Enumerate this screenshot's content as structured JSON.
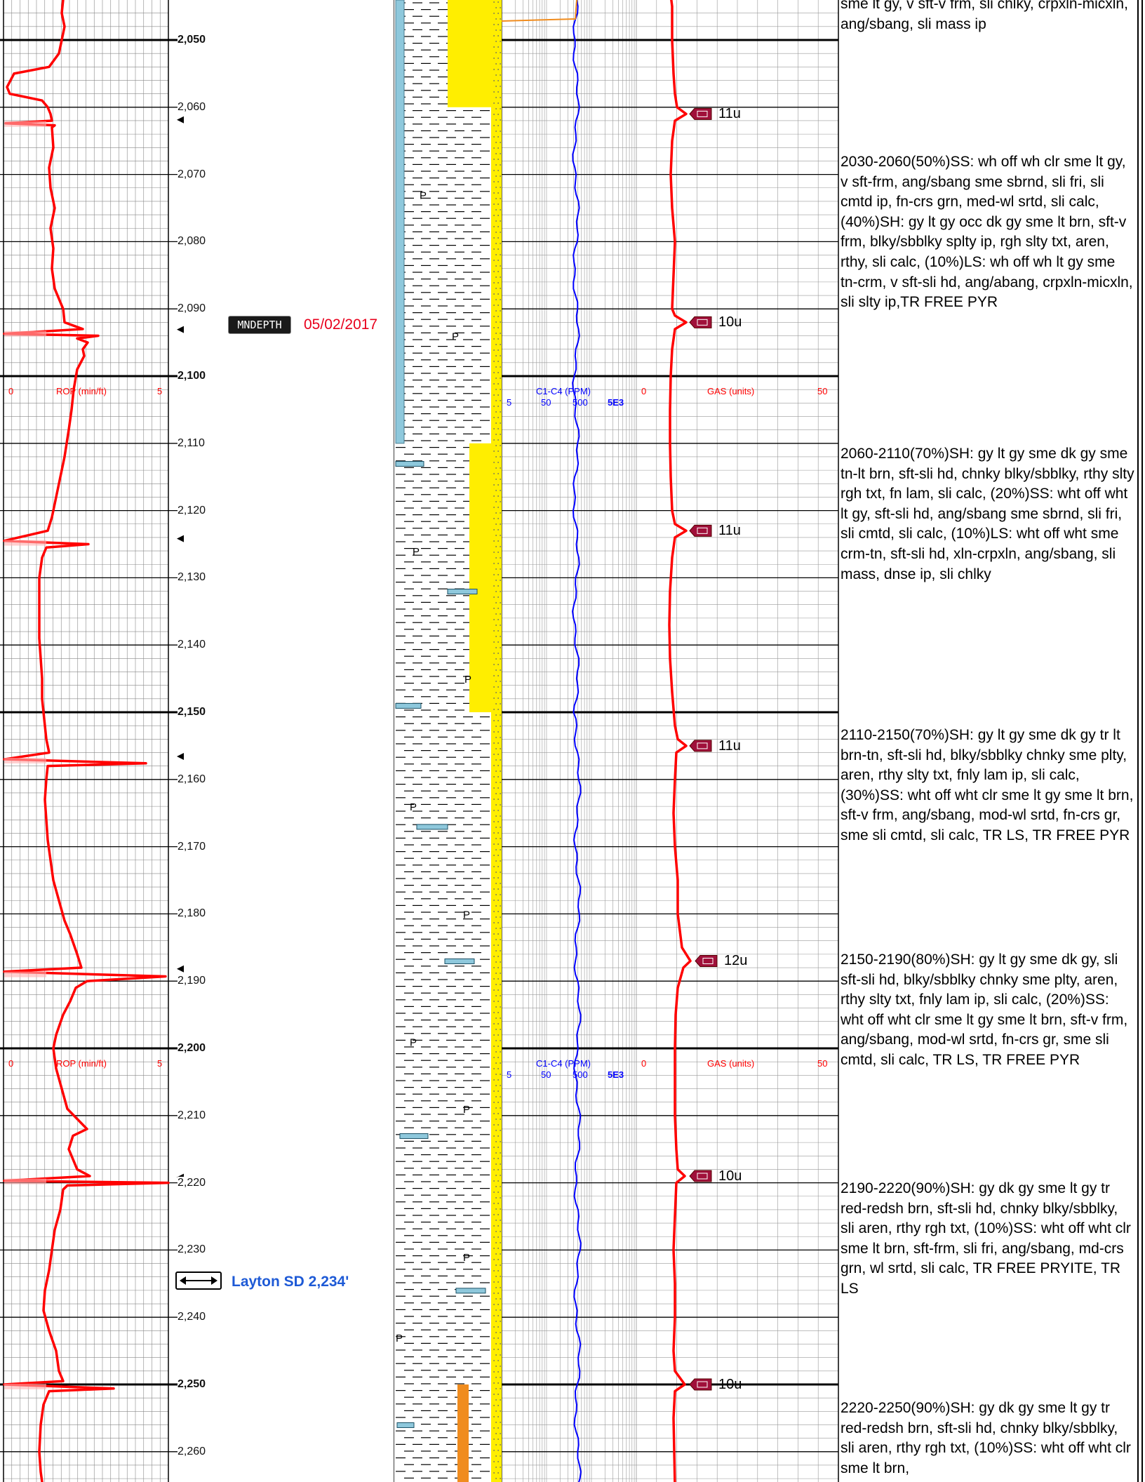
{
  "depth_track": {
    "unit": "ft",
    "depth_labels": [
      "2,050",
      "2,060",
      "2,070",
      "2,080",
      "2,090",
      "2,100",
      "2,110",
      "2,120",
      "2,130",
      "2,140",
      "2,150",
      "2,160",
      "2,170",
      "2,180",
      "2,190",
      "2,200",
      "2,210",
      "2,220",
      "2,230",
      "2,240",
      "2,250",
      "2,260"
    ],
    "bold_depths": [
      "2,050",
      "2,100",
      "2,150",
      "2,200",
      "2,250"
    ]
  },
  "rop_track": {
    "scale_min": "0",
    "scale_label": "ROP (min/ft)",
    "scale_max": "5",
    "header_depths": [
      2100,
      2200
    ],
    "color": "#ff0000"
  },
  "gas_track": {
    "c1c4_label": "C1-C4 (PPM)",
    "c1c4_ticks": [
      "5",
      "50",
      "500",
      "5E3"
    ],
    "gas_min": "0",
    "gas_label": "GAS (units)",
    "gas_max": "50",
    "connection_gas": [
      {
        "depth": 2061,
        "label": "11u"
      },
      {
        "depth": 2092,
        "label": "10u"
      },
      {
        "depth": 2123,
        "label": "11u"
      },
      {
        "depth": 2155,
        "label": "11u"
      },
      {
        "depth": 2187,
        "label": "12u"
      },
      {
        "depth": 2219,
        "label": "10u"
      },
      {
        "depth": 2250,
        "label": "10u"
      }
    ]
  },
  "annotations": {
    "mindepth_badge": "MNDEPTH",
    "mindepth_date": "05/02/2017",
    "formation_top": "Layton SD 2,234'"
  },
  "colors": {
    "rop": "#ff0000",
    "c1c4": "#0000ff",
    "gas": "#ff0000",
    "sand": "#ffee00",
    "limestone": "#8ec8dc",
    "orange": "#f08c1e"
  },
  "descriptions": [
    {
      "depth": 2030,
      "text": "sme lt gy, v sft-v frm, sli chlky, crpxln-micxln, ang/sbang, sli mass ip"
    },
    {
      "depth": 2030,
      "text": "2030-2060(50%)SS: wh off wh clr sme lt gy, v sft-frm, ang/sbang sme sbrnd, sli fri, sli cmtd ip, fn-crs grn, med-wl srtd, sli calc, (40%)SH: gy lt gy occ dk gy sme lt brn, sft-v frm, blky/sbblky splty ip, rgh slty txt, aren, rthy, sli calc, (10%)LS: wh off wh lt gy sme tn-crm, v sft-sli hd, ang/abang, crpxln-micxln, sli slty ip,TR FREE PYR"
    },
    {
      "depth": 2060,
      "text": "2060-2110(70%)SH: gy lt gy sme dk gy sme tn-lt brn, sft-sli hd, chnky blky/sbblky, rthy slty rgh txt, fn lam, sli calc, (20%)SS: wht off wht lt gy, sft-sli hd, ang/sbang sme sbrnd, sli fri, sli cmtd, sli calc, (10%)LS: wht off wht sme crm-tn, sft-sli hd, xln-crpxln, ang/sbang, sli mass, dnse ip, sli chlky"
    },
    {
      "depth": 2110,
      "text": "2110-2150(70%)SH: gy lt gy sme dk gy tr lt brn-tn, sft-sli hd, blky/sbblky chnky sme plty, aren, rthy slty txt, fnly lam ip, sli calc, (30%)SS: wht off wht clr sme lt gy sme lt brn, sft-v frm, ang/sbang, mod-wl srtd, fn-crs gr, sme sli cmtd, sli calc, TR LS, TR FREE PYR"
    },
    {
      "depth": 2150,
      "text": "2150-2190(80%)SH: gy lt gy sme dk gy, sli sft-sli hd, blky/sbblky chnky sme plty, aren, rthy slty txt, fnly lam ip, sli calc, (20%)SS: wht off wht clr sme lt gy sme lt brn, sft-v frm, ang/sbang, mod-wl srtd, fn-crs gr, sme sli cmtd, sli calc, TR LS, TR FREE PYR"
    },
    {
      "depth": 2190,
      "text": "2190-2220(90%)SH: gy dk gy sme lt gy tr red-redsh brn, sft-sli hd, chnky blky/sbblky, sli aren, rthy rgh txt, (10%)SS: wht off wht clr sme lt brn, sft-frm, sli fri, ang/sbang, md-crs grn, wl srtd, sli calc, TR FREE PRYITE, TR LS"
    },
    {
      "depth": 2220,
      "text": "2220-2250(90%)SH: gy dk gy sme lt gy tr red-redsh brn, sft-sli hd, chnky blky/sbblky, sli aren, rthy rgh txt, (10%)SS: wht off wht clr sme lt brn,"
    }
  ]
}
